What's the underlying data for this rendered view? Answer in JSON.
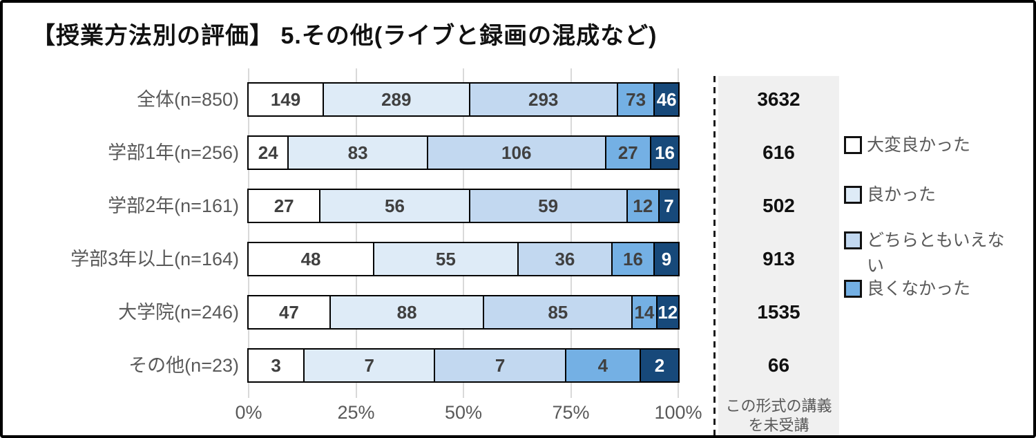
{
  "chart_data": {
    "type": "bar",
    "variant": "stacked-horizontal",
    "title": "【授業方法別の評価】 5.その他(ライブと録画の混成など)",
    "categories": [
      "全体(n=850)",
      "学部1年(n=256)",
      "学部2年(n=161)",
      "学部3年以上(n=164)",
      "大学院(n=246)",
      "その他(n=23)"
    ],
    "series": [
      {
        "name": "大変良かった",
        "color": "#FFFFFF",
        "label_color": "#404040",
        "values": [
          149,
          24,
          27,
          48,
          47,
          3
        ]
      },
      {
        "name": "良かった",
        "color": "#DEEBF7",
        "label_color": "#404040",
        "values": [
          289,
          83,
          56,
          55,
          88,
          7
        ]
      },
      {
        "name": "どちらともいえない",
        "color": "#C2D8F0",
        "label_color": "#404040",
        "values": [
          293,
          106,
          59,
          36,
          85,
          7
        ]
      },
      {
        "name": "良くなかった",
        "color": "#74B0E4",
        "label_color": "#404040",
        "values": [
          73,
          27,
          12,
          16,
          14,
          4
        ]
      },
      {
        "name": "",
        "color": "#17497A",
        "label_color": "#FFFFFF",
        "values": [
          46,
          16,
          7,
          9,
          12,
          2
        ]
      }
    ],
    "x_axis": {
      "ticks": [
        "0%",
        "25%",
        "50%",
        "75%",
        "100%"
      ],
      "range": [
        0,
        100
      ],
      "unit": "percent"
    },
    "grid": true,
    "legend_position": "right",
    "side_column": {
      "values": [
        3632,
        616,
        502,
        913,
        1535,
        66
      ],
      "label_lines": [
        "この形式の講義",
        "を未受講"
      ]
    },
    "colors": {
      "panel_bg": "#F0F0F0",
      "gridline": "#D9D9D9",
      "muted_text": "#595959"
    }
  },
  "legend": {
    "entries": [
      {
        "label": "大変良かった",
        "color": "#FFFFFF"
      },
      {
        "label": "良かった",
        "color": "#DEEBF7"
      },
      {
        "label": "どちらともいえない",
        "color": "#C2D8F0"
      },
      {
        "label": "良くなかった",
        "color": "#74B0E4"
      }
    ]
  }
}
